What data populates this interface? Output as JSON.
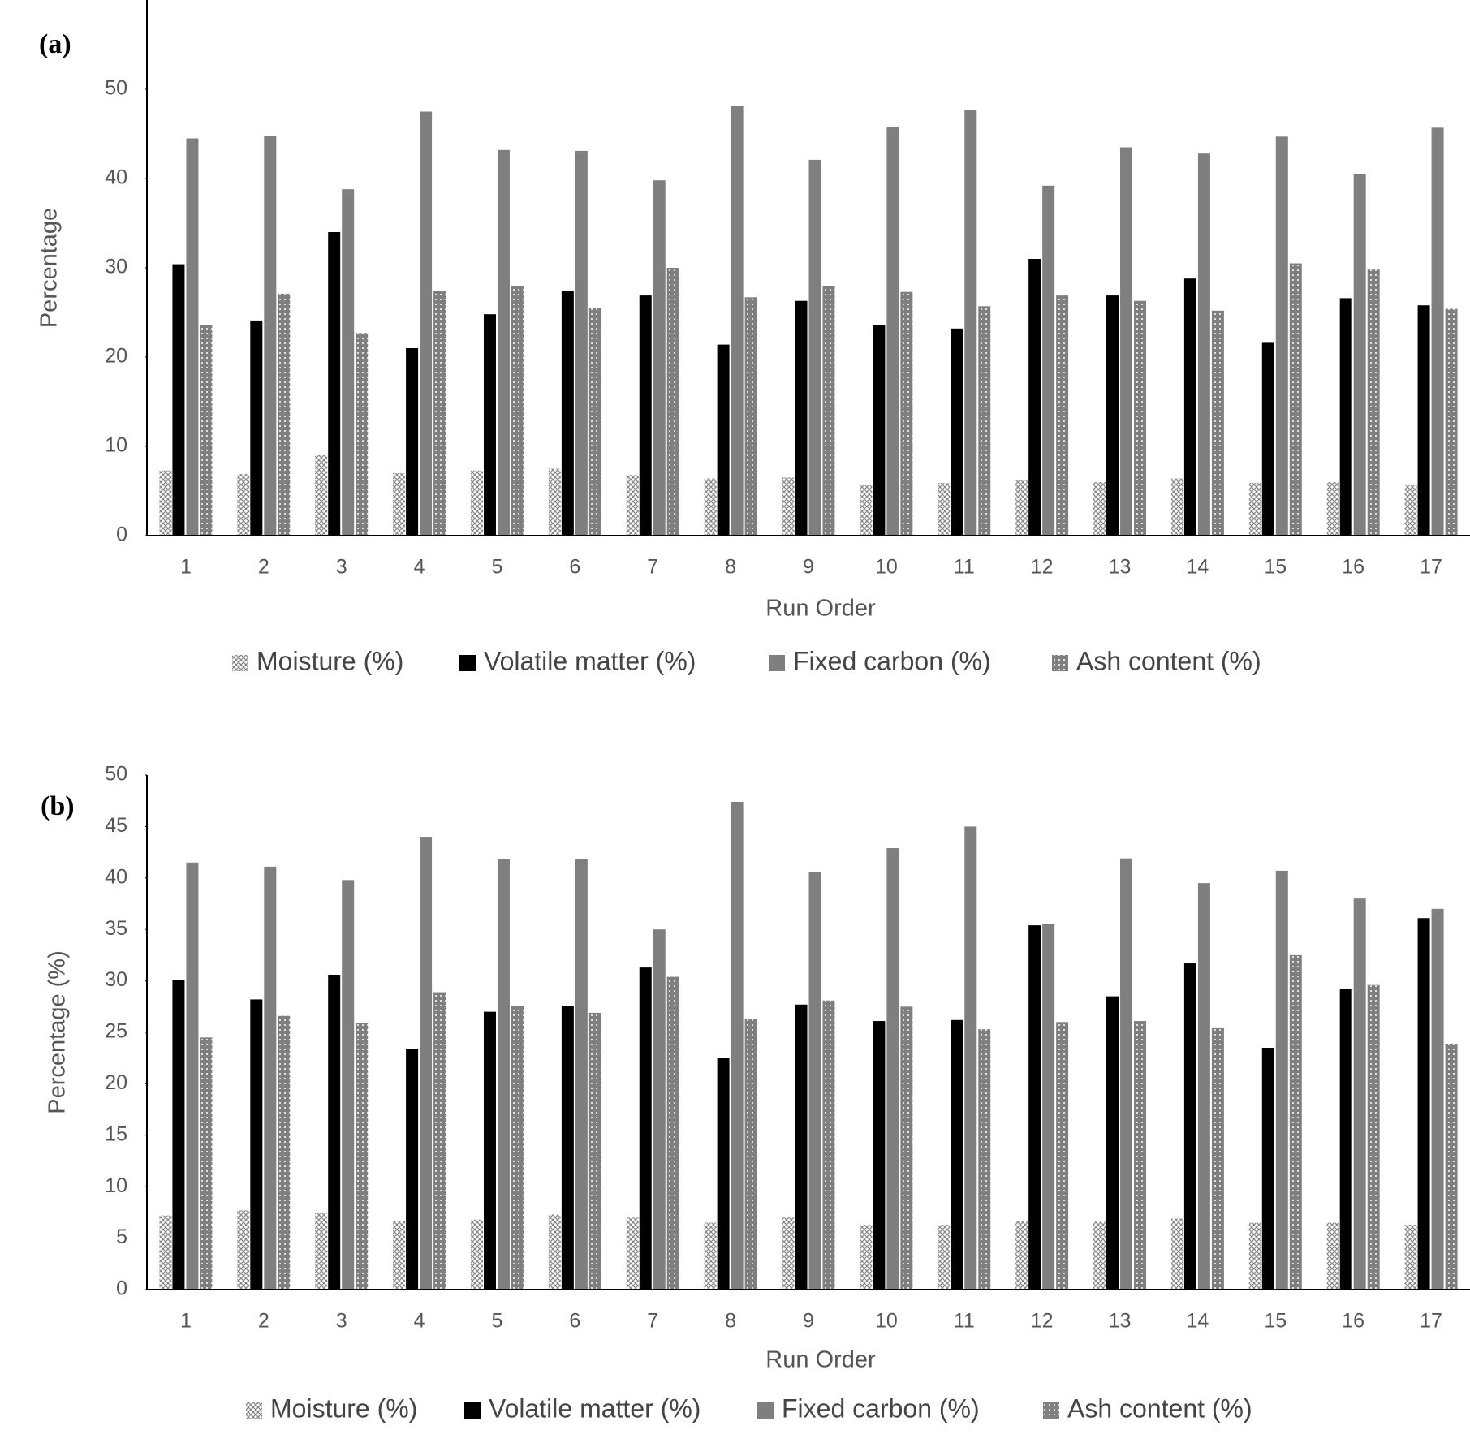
{
  "chart_data": [
    {
      "type": "bar",
      "label": "(a)",
      "x_label": "Run Order",
      "y_label": "Percentage",
      "categories": [
        "1",
        "2",
        "3",
        "4",
        "5",
        "6",
        "7",
        "8",
        "9",
        "10",
        "11",
        "12",
        "13",
        "14",
        "15",
        "16",
        "17"
      ],
      "ylim": [
        0,
        60
      ],
      "yticks": [
        0,
        10,
        20,
        30,
        40,
        50
      ],
      "series": [
        {
          "name": "Moisture (%)",
          "color": "#bdbdbd",
          "pattern": "crosshatch",
          "values": [
            7.3,
            6.9,
            9.0,
            7.0,
            7.3,
            7.5,
            6.8,
            6.4,
            6.5,
            5.7,
            5.9,
            6.2,
            6.0,
            6.4,
            5.9,
            6.0,
            5.7
          ]
        },
        {
          "name": "Volatile matter (%)",
          "color": "#000000",
          "pattern": "solid",
          "values": [
            30.4,
            24.1,
            34.0,
            21.0,
            24.8,
            27.4,
            26.9,
            21.4,
            26.3,
            23.6,
            23.2,
            31.0,
            26.9,
            28.8,
            21.6,
            26.6,
            25.8
          ]
        },
        {
          "name": "Fixed carbon (%)",
          "color": "#7f7f7f",
          "pattern": "solid",
          "values": [
            44.5,
            44.8,
            38.8,
            47.5,
            43.2,
            43.1,
            39.8,
            48.1,
            42.1,
            45.8,
            47.7,
            39.2,
            43.5,
            42.8,
            44.7,
            40.5,
            45.7
          ]
        },
        {
          "name": "Ash content (%)",
          "color": "#7f7f7f",
          "pattern": "dots",
          "values": [
            23.6,
            27.1,
            22.7,
            27.4,
            28.0,
            25.5,
            30.0,
            26.7,
            28.0,
            27.3,
            25.7,
            26.9,
            26.3,
            25.2,
            30.5,
            29.8,
            25.4
          ]
        }
      ]
    },
    {
      "type": "bar",
      "label": "(b)",
      "x_label": "Run Order",
      "y_label": "Percentage (%)",
      "categories": [
        "1",
        "2",
        "3",
        "4",
        "5",
        "6",
        "7",
        "8",
        "9",
        "10",
        "11",
        "12",
        "13",
        "14",
        "15",
        "16",
        "17"
      ],
      "ylim": [
        0,
        50
      ],
      "yticks": [
        0,
        5,
        10,
        15,
        20,
        25,
        30,
        35,
        40,
        45,
        50
      ],
      "series": [
        {
          "name": "Moisture (%)",
          "color": "#bdbdbd",
          "pattern": "crosshatch",
          "values": [
            7.2,
            7.7,
            7.5,
            6.7,
            6.8,
            7.3,
            7.0,
            6.5,
            7.0,
            6.3,
            6.3,
            6.7,
            6.6,
            6.9,
            6.5,
            6.5,
            6.3
          ]
        },
        {
          "name": "Volatile matter (%)",
          "color": "#000000",
          "pattern": "solid",
          "values": [
            30.1,
            28.2,
            30.6,
            23.4,
            27.0,
            27.6,
            31.3,
            22.5,
            27.7,
            26.1,
            26.2,
            35.4,
            28.5,
            31.7,
            23.5,
            29.2,
            36.1
          ]
        },
        {
          "name": "Fixed carbon (%)",
          "color": "#7f7f7f",
          "pattern": "solid",
          "values": [
            41.5,
            41.1,
            39.8,
            44.0,
            41.8,
            41.8,
            35.0,
            47.4,
            40.6,
            42.9,
            45.0,
            35.5,
            41.9,
            39.5,
            40.7,
            38.0,
            37.0
          ]
        },
        {
          "name": "Ash content (%)",
          "color": "#7f7f7f",
          "pattern": "dots",
          "values": [
            24.5,
            26.6,
            25.9,
            28.9,
            27.6,
            26.9,
            30.4,
            26.3,
            28.1,
            27.5,
            25.3,
            26.0,
            26.1,
            25.4,
            32.5,
            29.6,
            23.9
          ]
        }
      ]
    }
  ]
}
